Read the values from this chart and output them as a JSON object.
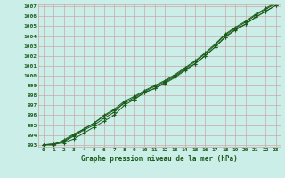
{
  "title": "Graphe pression niveau de la mer (hPa)",
  "xlim": [
    -0.5,
    23.5
  ],
  "ylim": [
    992.8,
    1007.2
  ],
  "yticks": [
    993,
    994,
    995,
    996,
    997,
    998,
    999,
    1000,
    1001,
    1002,
    1003,
    1004,
    1005,
    1006,
    1007
  ],
  "xticks": [
    0,
    1,
    2,
    3,
    4,
    5,
    6,
    7,
    8,
    9,
    10,
    11,
    12,
    13,
    14,
    15,
    16,
    17,
    18,
    19,
    20,
    21,
    22,
    23
  ],
  "background_color": "#cceee8",
  "grid_color": "#c8a8a8",
  "line_color": "#1a5c1a",
  "line1": [
    993.0,
    993.1,
    993.2,
    993.6,
    994.2,
    994.8,
    995.4,
    996.0,
    997.0,
    997.6,
    998.3,
    998.7,
    999.2,
    999.8,
    1000.5,
    1001.2,
    1002.0,
    1002.9,
    1003.9,
    1004.7,
    1005.2,
    1005.9,
    1006.5,
    1007.1
  ],
  "line2": [
    993.0,
    993.1,
    993.4,
    994.0,
    994.6,
    995.2,
    995.9,
    996.5,
    997.2,
    997.8,
    998.4,
    998.9,
    999.4,
    1000.0,
    1000.7,
    1001.4,
    1002.2,
    1003.1,
    1004.1,
    1004.8,
    1005.4,
    1006.1,
    1006.7,
    1007.3
  ],
  "line3": [
    993.0,
    993.0,
    993.5,
    994.1,
    994.6,
    995.2,
    996.0,
    996.6,
    997.4,
    997.9,
    998.5,
    999.0,
    999.5,
    1000.1,
    1000.8,
    1001.5,
    1002.3,
    1003.2,
    1004.2,
    1004.9,
    1005.5,
    1006.2,
    1006.8,
    1007.4
  ],
  "line4": [
    993.0,
    993.0,
    993.3,
    993.9,
    994.5,
    995.0,
    995.7,
    996.3,
    997.3,
    997.6,
    998.3,
    998.7,
    999.3,
    999.9,
    1000.6,
    1001.2,
    1002.0,
    1002.9,
    1003.9,
    1004.6,
    1005.2,
    1005.9,
    1006.5,
    1007.1
  ]
}
